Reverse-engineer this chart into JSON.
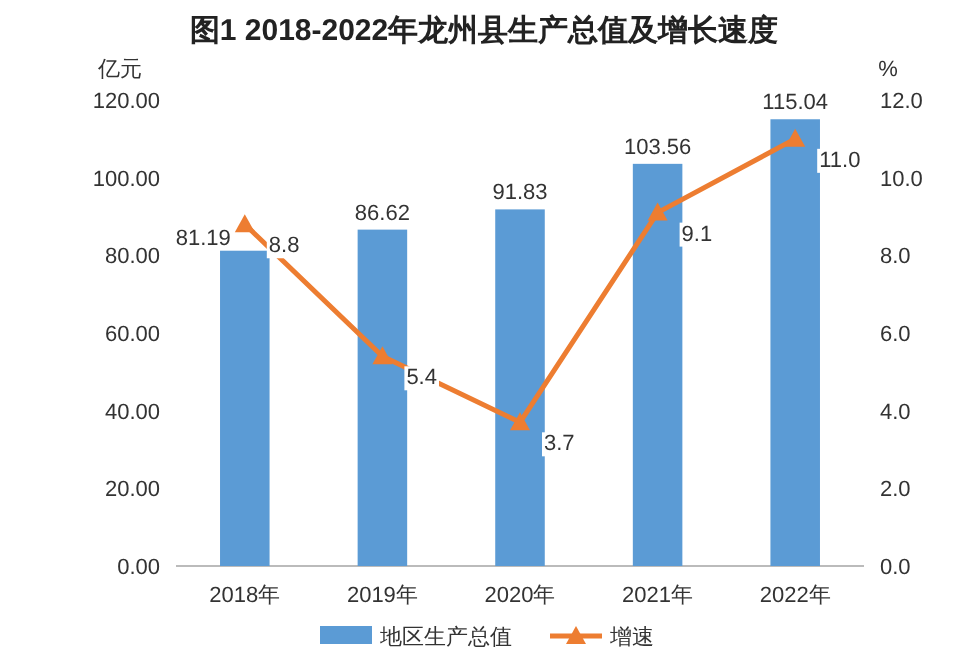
{
  "chart_data": {
    "type": "bar",
    "title": "图1    2018-2022年龙州县生产总值及增长速度",
    "categories": [
      "2018年",
      "2019年",
      "2020年",
      "2021年",
      "2022年"
    ],
    "series": [
      {
        "name": "地区生产总值",
        "color": "#5b9bd5",
        "values": [
          81.19,
          86.62,
          91.83,
          103.56,
          115.04
        ]
      },
      {
        "name": "增速",
        "type": "line",
        "axis": "y2",
        "color": "#ed7d31",
        "marker": "triangle",
        "values": [
          8.8,
          5.4,
          3.7,
          9.1,
          11.0
        ],
        "value_labels": [
          "8.8",
          "5.4",
          "3.7",
          "9.1",
          "11.0"
        ]
      }
    ],
    "ylabel": "亿元",
    "y2label": "%",
    "ylim": [
      0,
      120
    ],
    "yticks": [
      {
        "value": 0,
        "label": "0.00"
      },
      {
        "value": 20,
        "label": "20.00"
      },
      {
        "value": 40,
        "label": "40.00"
      },
      {
        "value": 60,
        "label": "60.00"
      },
      {
        "value": 80,
        "label": "80.00"
      },
      {
        "value": 100,
        "label": "100.00"
      },
      {
        "value": 120,
        "label": "120.00"
      }
    ],
    "y2lim": [
      0,
      12
    ],
    "y2ticks": [
      {
        "value": 0,
        "label": "0.0"
      },
      {
        "value": 2,
        "label": "2.0"
      },
      {
        "value": 4,
        "label": "4.0"
      },
      {
        "value": 6,
        "label": "6.0"
      },
      {
        "value": 8,
        "label": "8.0"
      },
      {
        "value": 10,
        "label": "10.0"
      },
      {
        "value": 12,
        "label": "12.0"
      }
    ],
    "data_labels": true,
    "legend": "bottom",
    "grid": false
  }
}
